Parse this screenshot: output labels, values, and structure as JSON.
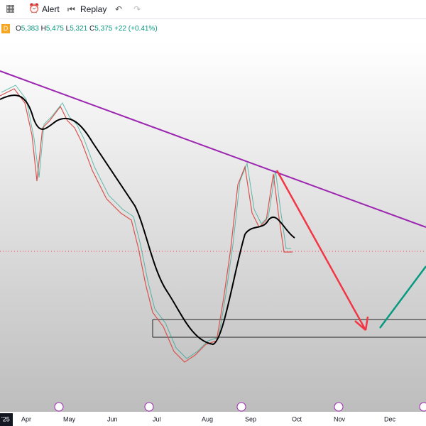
{
  "toolbar": {
    "alert": "Alert",
    "replay": "Replay"
  },
  "legend": {
    "interval": "D",
    "open": {
      "label": "O",
      "value": "5,383"
    },
    "high": {
      "label": "H",
      "value": "5,475"
    },
    "low": {
      "label": "L",
      "value": "5,321"
    },
    "close": {
      "label": "C",
      "value": "5,375"
    },
    "change": "+22 (+0.41%)"
  },
  "x_axis": {
    "labels": [
      "'25",
      "Apr",
      "May",
      "Jun",
      "Jul",
      "Aug",
      "Sep",
      "Oct",
      "Nov",
      "Dec"
    ]
  }
}
